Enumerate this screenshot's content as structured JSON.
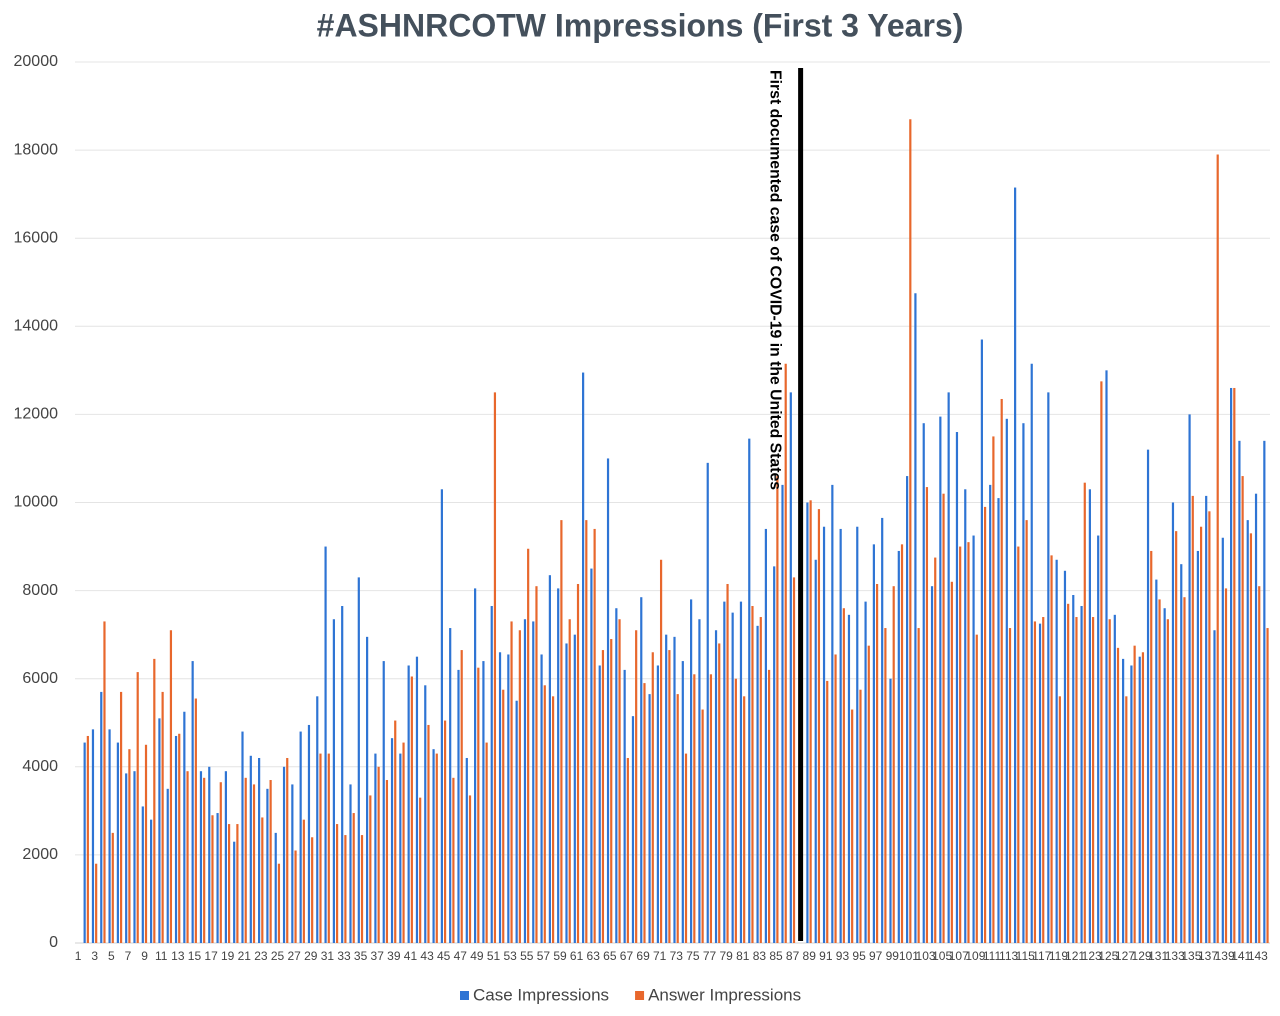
{
  "chart_data": {
    "type": "bar",
    "title": "#ASHNRCOTW Impressions (First 3 Years)",
    "annotation": "First documented case of COVID-19 in the United States",
    "categories": [
      "1",
      null,
      "3",
      null,
      "5",
      null,
      "7",
      null,
      "9",
      null,
      "11",
      null,
      "13",
      null,
      "15",
      null,
      "17",
      null,
      "19",
      null,
      "21",
      null,
      "23",
      null,
      "25",
      null,
      "27",
      null,
      "29",
      null,
      "31",
      null,
      "33",
      null,
      "35",
      null,
      "37",
      null,
      "39",
      null,
      "41",
      null,
      "43",
      null,
      "45",
      null,
      "47",
      null,
      "49",
      null,
      "51",
      null,
      "53",
      null,
      "55",
      null,
      "57",
      null,
      "59",
      null,
      "61",
      null,
      "63",
      null,
      "65",
      null,
      "67",
      null,
      "69",
      null,
      "71",
      null,
      "73",
      null,
      "75",
      null,
      "77",
      null,
      "79",
      null,
      "81",
      null,
      "83",
      null,
      "85",
      null,
      "87",
      null,
      "89",
      null,
      "91",
      null,
      "93",
      null,
      "95",
      null,
      "97",
      null,
      "99",
      null,
      "101",
      null,
      "103",
      null,
      "105",
      null,
      "107",
      null,
      "109",
      null,
      "111",
      null,
      "113",
      null,
      "115",
      null,
      "117",
      null,
      "119",
      null,
      "121",
      null,
      "123",
      null,
      "125",
      null,
      "127",
      null,
      "129",
      null,
      "131",
      null,
      "133",
      null,
      "135",
      null,
      "137",
      null,
      "139",
      null,
      "141",
      null,
      "143"
    ],
    "series": [
      {
        "name": "Case Impressions",
        "color": "#2e74d4",
        "values": [
          4550,
          4850,
          5700,
          4850,
          4550,
          3850,
          3900,
          3100,
          2800,
          5100,
          3500,
          4700,
          5250,
          6400,
          3900,
          4000,
          2950,
          3900,
          2300,
          4800,
          4250,
          4200,
          3500,
          2500,
          4000,
          3600,
          4800,
          4950,
          5600,
          9000,
          7350,
          7650,
          3600,
          8300,
          6950,
          4300,
          6400,
          4650,
          4300,
          6300,
          6500,
          5850,
          4400,
          10300,
          7150,
          6200,
          4200,
          8050,
          6400,
          7650,
          6600,
          6550,
          5500,
          7350,
          7300,
          6550,
          8350,
          8050,
          6800,
          7000,
          12950,
          8500,
          6300,
          11000,
          7600,
          6200,
          5150,
          7850,
          5650,
          6300,
          7000,
          6950,
          6400,
          7800,
          7350,
          10900,
          7100,
          7750,
          7500,
          7750,
          11450,
          7200,
          9400,
          8550,
          10400,
          12500,
          null,
          10000,
          8700,
          9450,
          10400,
          9400,
          7450,
          9450,
          7750,
          9050,
          9650,
          6000,
          8900,
          10600,
          14750,
          11800,
          8100,
          11950,
          12500,
          11600,
          10300,
          9250,
          13700,
          10400,
          10100,
          11900,
          17150,
          11800,
          13150,
          7250,
          12500,
          8700,
          8450,
          7900,
          7650,
          10300,
          9250,
          13000,
          7450,
          6450,
          6300,
          6500,
          11200,
          8250,
          7600,
          10000,
          8600,
          12000,
          8900,
          10150,
          7100,
          9200,
          12600,
          11400,
          9600,
          10200,
          11400
        ]
      },
      {
        "name": "Answer Impressions",
        "color": "#e8672c",
        "values": [
          4700,
          1800,
          7300,
          2500,
          5700,
          4400,
          6150,
          4500,
          6450,
          5700,
          7100,
          4750,
          3900,
          5550,
          3750,
          2900,
          3650,
          2700,
          2700,
          3750,
          3600,
          2850,
          3700,
          1800,
          4200,
          2100,
          2800,
          2400,
          4300,
          4300,
          2700,
          2450,
          2950,
          2450,
          3350,
          4000,
          3700,
          5050,
          4550,
          6050,
          3300,
          4950,
          4300,
          5050,
          3750,
          6650,
          3350,
          6250,
          4550,
          12500,
          5750,
          7300,
          7100,
          8950,
          8100,
          5850,
          5600,
          9600,
          7350,
          8150,
          9600,
          9400,
          6650,
          6900,
          7350,
          4200,
          7100,
          5900,
          6600,
          8700,
          6650,
          5650,
          4300,
          6100,
          5300,
          6100,
          6800,
          8150,
          6000,
          5600,
          7650,
          7400,
          6200,
          10600,
          13150,
          8300,
          null,
          10050,
          9850,
          5950,
          6550,
          7600,
          5300,
          5750,
          6750,
          8150,
          7150,
          8100,
          9050,
          18700,
          7150,
          10350,
          8750,
          10200,
          8200,
          9000,
          9100,
          7000,
          9900,
          11500,
          12350,
          7150,
          9000,
          9600,
          7300,
          7400,
          8800,
          5600,
          7700,
          7400,
          10450,
          7400,
          12750,
          7350,
          6700,
          5600,
          6750,
          6600,
          8900,
          7800,
          7350,
          9350,
          7850,
          10150,
          9450,
          9800,
          17900,
          8050,
          12600,
          10600,
          9300,
          8100,
          7150
        ]
      }
    ],
    "ylim": [
      0,
      20000
    ],
    "yticks": [
      0,
      2000,
      4000,
      6000,
      8000,
      10000,
      12000,
      14000,
      16000,
      18000,
      20000
    ],
    "grid": true,
    "legend": "bottom"
  }
}
